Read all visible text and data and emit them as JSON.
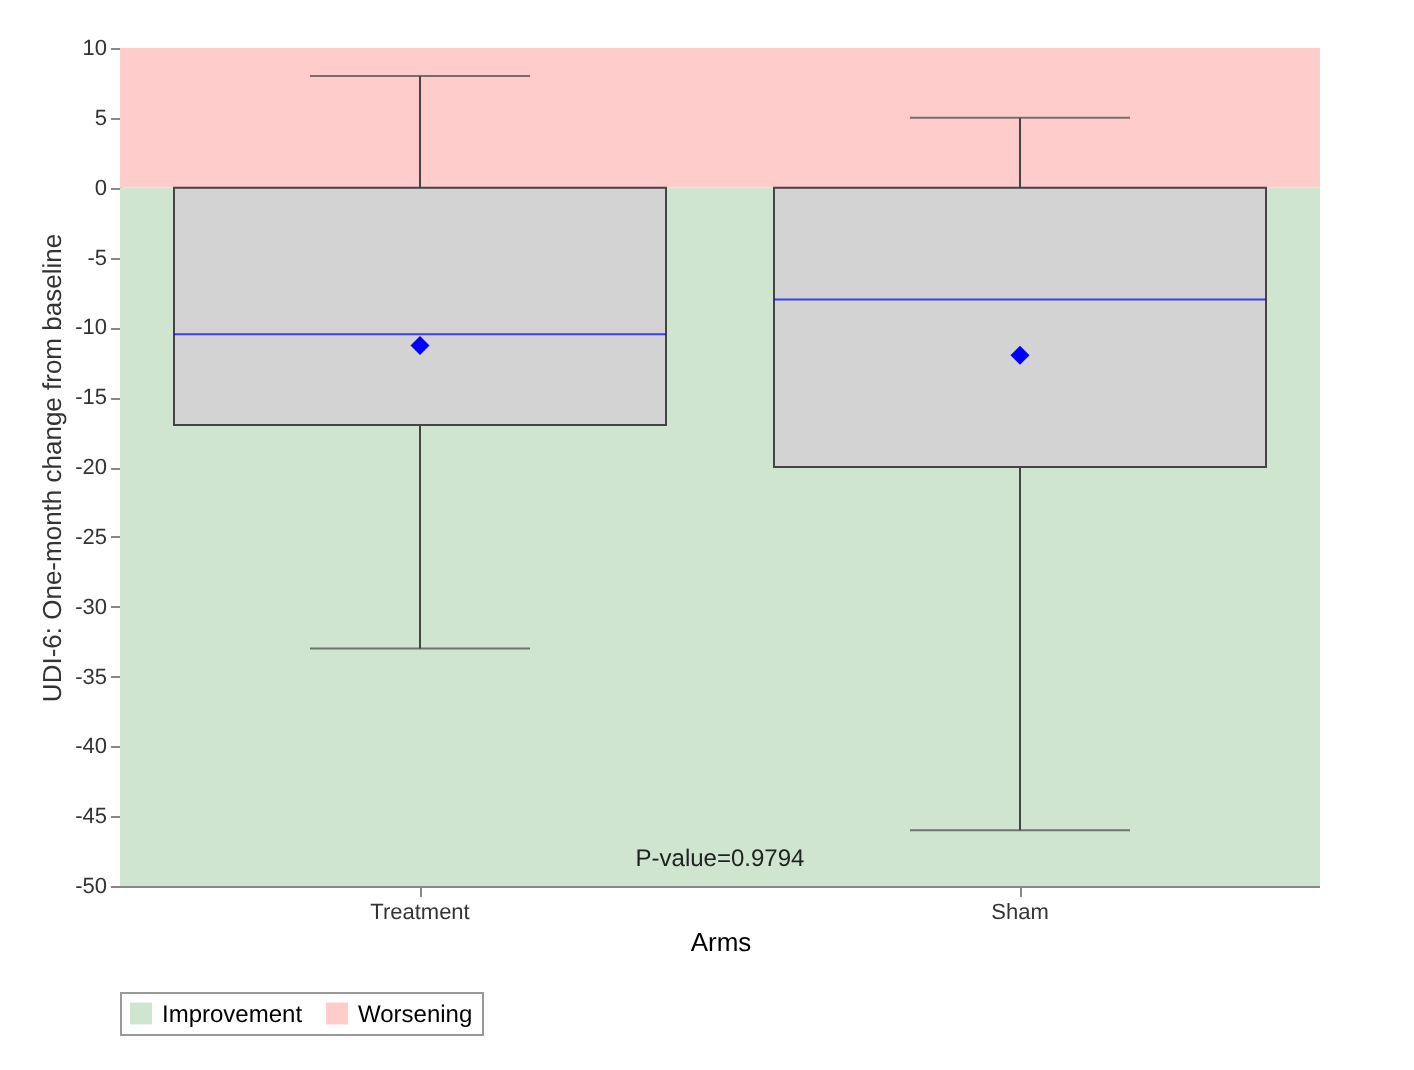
{
  "chart_data": {
    "type": "box",
    "xlabel": "Arms",
    "ylabel": "UDI-6: One-month change from baseline",
    "categories": [
      "Treatment",
      "Sham"
    ],
    "boxes": [
      {
        "low": -33,
        "q1": -17,
        "median": -10.5,
        "q3": 0,
        "high": 8,
        "mean": -11.3
      },
      {
        "low": -46,
        "q1": -20,
        "median": -8,
        "q3": 0,
        "high": 5,
        "mean": -12
      }
    ],
    "color": "#d3d3d3",
    "marker": "diamond",
    "ylim": [
      -50,
      10
    ],
    "yticks": [
      -50,
      -45,
      -40,
      -35,
      -30,
      -25,
      -20,
      -15,
      -10,
      -5,
      0,
      5,
      10
    ],
    "bands": [
      {
        "axis": "y",
        "from": -50,
        "to": 0,
        "label": "Improvement",
        "color": "#cfe5cf"
      },
      {
        "axis": "y",
        "from": 0,
        "to": 10,
        "label": "Worsening",
        "color": "#ffcccc"
      }
    ],
    "annotations": [
      "P-value=0.9794"
    ],
    "legend": "bottom"
  }
}
